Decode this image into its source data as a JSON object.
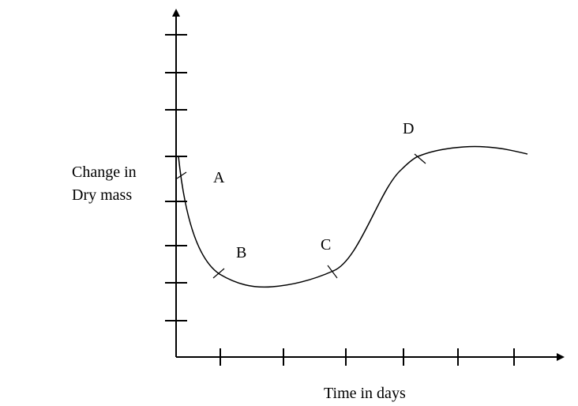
{
  "chart_data": {
    "type": "line",
    "title": "",
    "xlabel": "Time in days",
    "ylabel_lines": [
      "Change in",
      "Dry mass"
    ],
    "x_ticks": 6,
    "y_ticks": 8,
    "grid": false,
    "point_labels": [
      "A",
      "B",
      "C",
      "D"
    ],
    "curve_shape": "Starts high at the y-axis, falls steeply through A to a minimum near B, rises gently to C, then rises steeply to D and levels off into a plateau"
  }
}
